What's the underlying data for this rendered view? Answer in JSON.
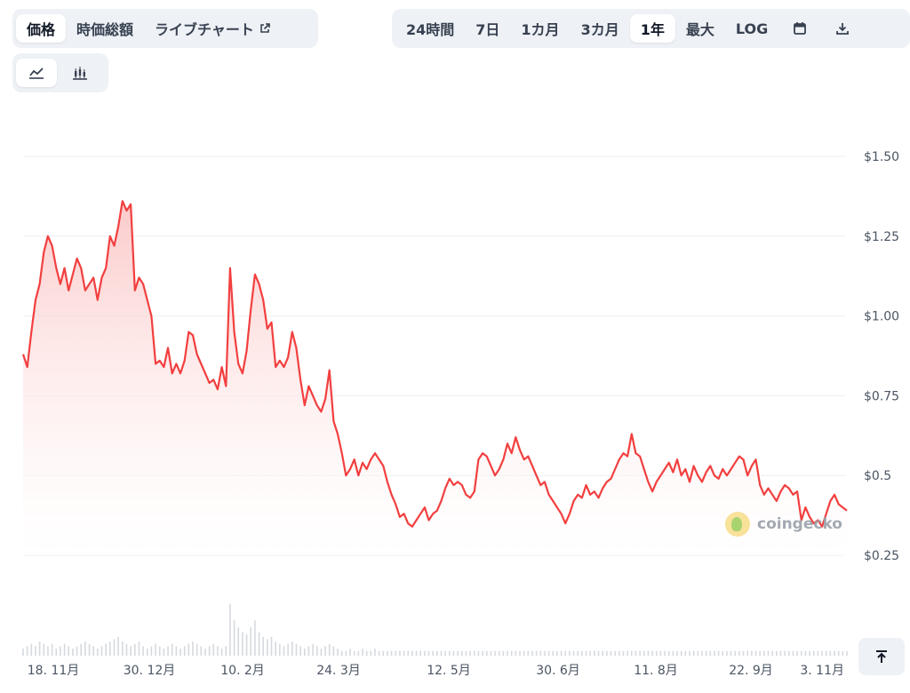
{
  "view_tabs": [
    {
      "label": "価格",
      "active": true,
      "name": "tab-price"
    },
    {
      "label": "時価総額",
      "active": false,
      "name": "tab-market-cap"
    },
    {
      "label": "ライブチャート",
      "active": false,
      "name": "tab-live-chart"
    }
  ],
  "range_tabs": [
    {
      "label": "24時間",
      "active": false,
      "name": "range-24h"
    },
    {
      "label": "7日",
      "active": false,
      "name": "range-7d"
    },
    {
      "label": "1カ月",
      "active": false,
      "name": "range-1m"
    },
    {
      "label": "3カ月",
      "active": false,
      "name": "range-3m"
    },
    {
      "label": "1年",
      "active": true,
      "name": "range-1y"
    },
    {
      "label": "最大",
      "active": false,
      "name": "range-max"
    },
    {
      "label": "LOG",
      "active": false,
      "name": "range-log"
    }
  ],
  "icons": {
    "external": "external-link-icon",
    "calendar": "calendar-icon",
    "download": "download-icon",
    "line_chart": "line-chart-icon",
    "candle_chart": "candlestick-chart-icon",
    "scroll_top": "arrow-up-to-line-icon"
  },
  "watermark": {
    "text": "coingecko"
  },
  "colors": {
    "line": "#f23f3f",
    "fill_top": "#fcd0d0",
    "grid": "#eceff3",
    "volume": "#d5d9df"
  },
  "chart_data": {
    "type": "line",
    "title": "",
    "xlabel": "",
    "ylabel": "",
    "ylim": [
      0.25,
      1.5
    ],
    "y_ticks": [
      0.25,
      0.5,
      0.75,
      1.0,
      1.25,
      1.5
    ],
    "y_tick_labels": [
      "$0.25",
      "$0.5",
      "$0.75",
      "$1.00",
      "$1.25",
      "$1.50"
    ],
    "x_tick_labels": [
      "18. 11月",
      "30. 12月",
      "10. 2月",
      "24. 3月",
      "12. 5月",
      "30. 6月",
      "11. 8月",
      "22. 9月",
      "3. 11月"
    ],
    "grid": true,
    "series": [
      {
        "values": [
          0.88,
          0.84,
          0.95,
          1.05,
          1.1,
          1.2,
          1.25,
          1.22,
          1.15,
          1.1,
          1.15,
          1.08,
          1.13,
          1.18,
          1.15,
          1.08,
          1.1,
          1.12,
          1.05,
          1.12,
          1.15,
          1.25,
          1.22,
          1.28,
          1.36,
          1.33,
          1.35,
          1.08,
          1.12,
          1.1,
          1.05,
          1.0,
          0.85,
          0.86,
          0.84,
          0.9,
          0.82,
          0.85,
          0.82,
          0.86,
          0.95,
          0.94,
          0.88,
          0.85,
          0.82,
          0.79,
          0.8,
          0.77,
          0.84,
          0.78,
          1.15,
          0.95,
          0.85,
          0.82,
          0.89,
          1.02,
          1.13,
          1.1,
          1.05,
          0.96,
          0.98,
          0.84,
          0.86,
          0.84,
          0.87,
          0.95,
          0.9,
          0.8,
          0.72,
          0.78,
          0.75,
          0.72,
          0.7,
          0.74,
          0.83,
          0.67,
          0.63,
          0.57,
          0.5,
          0.52,
          0.55,
          0.5,
          0.54,
          0.52,
          0.55,
          0.57,
          0.55,
          0.53,
          0.48,
          0.44,
          0.41,
          0.37,
          0.38,
          0.35,
          0.34,
          0.36,
          0.38,
          0.4,
          0.36,
          0.38,
          0.39,
          0.42,
          0.46,
          0.49,
          0.47,
          0.48,
          0.47,
          0.44,
          0.43,
          0.45,
          0.55,
          0.57,
          0.56,
          0.53,
          0.5,
          0.52,
          0.55,
          0.6,
          0.57,
          0.62,
          0.58,
          0.55,
          0.56,
          0.53,
          0.5,
          0.47,
          0.48,
          0.44,
          0.42,
          0.4,
          0.38,
          0.35,
          0.38,
          0.42,
          0.44,
          0.43,
          0.47,
          0.44,
          0.45,
          0.43,
          0.46,
          0.48,
          0.49,
          0.52,
          0.55,
          0.57,
          0.56,
          0.63,
          0.57,
          0.56,
          0.52,
          0.48,
          0.45,
          0.48,
          0.5,
          0.52,
          0.54,
          0.51,
          0.55,
          0.5,
          0.52,
          0.48,
          0.53,
          0.5,
          0.48,
          0.51,
          0.53,
          0.5,
          0.49,
          0.52,
          0.5,
          0.52,
          0.54,
          0.56,
          0.55,
          0.5,
          0.53,
          0.55,
          0.47,
          0.44,
          0.46,
          0.44,
          0.42,
          0.45,
          0.47,
          0.46,
          0.44,
          0.45,
          0.36,
          0.4,
          0.37,
          0.35,
          0.36,
          0.34,
          0.38,
          0.42,
          0.44,
          0.41,
          0.4,
          0.39
        ]
      },
      {
        "name": "",
        "values": [
          0.03,
          0.04,
          0.05,
          0.04,
          0.06,
          0.05,
          0.04,
          0.05,
          0.03,
          0.04,
          0.05,
          0.04,
          0.03,
          0.04,
          0.05,
          0.06,
          0.05,
          0.04,
          0.03,
          0.04,
          0.05,
          0.06,
          0.07,
          0.08,
          0.06,
          0.05,
          0.04,
          0.05,
          0.06,
          0.04,
          0.03,
          0.04,
          0.05,
          0.04,
          0.03,
          0.04,
          0.05,
          0.04,
          0.03,
          0.04,
          0.05,
          0.06,
          0.05,
          0.04,
          0.03,
          0.04,
          0.05,
          0.04,
          0.03,
          0.04,
          0.22,
          0.15,
          0.12,
          0.1,
          0.09,
          0.12,
          0.15,
          0.1,
          0.08,
          0.07,
          0.08,
          0.06,
          0.05,
          0.04,
          0.05,
          0.06,
          0.05,
          0.04,
          0.03,
          0.04,
          0.05,
          0.04,
          0.03,
          0.04,
          0.05,
          0.04,
          0.03,
          0.02,
          0.02,
          0.03,
          0.02,
          0.02,
          0.03,
          0.02,
          0.02,
          0.03,
          0.02,
          0.02,
          0.02,
          0.02,
          0.02,
          0.02,
          0.02,
          0.02,
          0.02,
          0.02,
          0.02,
          0.02,
          0.02,
          0.02,
          0.02,
          0.02,
          0.02,
          0.02,
          0.02,
          0.02,
          0.02,
          0.02,
          0.02,
          0.02,
          0.02,
          0.02,
          0.02,
          0.02,
          0.02,
          0.02,
          0.02,
          0.02,
          0.02,
          0.02,
          0.02,
          0.02,
          0.02,
          0.02,
          0.02,
          0.02,
          0.02,
          0.02,
          0.02,
          0.02,
          0.02,
          0.02,
          0.02,
          0.02,
          0.02,
          0.02,
          0.02,
          0.02,
          0.02,
          0.02,
          0.02,
          0.02,
          0.02,
          0.02,
          0.02,
          0.02,
          0.02,
          0.02,
          0.02,
          0.02,
          0.02,
          0.02,
          0.02,
          0.02,
          0.02,
          0.02,
          0.02,
          0.02,
          0.02,
          0.02,
          0.02,
          0.02,
          0.02,
          0.02,
          0.02,
          0.02,
          0.02,
          0.02,
          0.02,
          0.02,
          0.02,
          0.02,
          0.02,
          0.02,
          0.02,
          0.02,
          0.02,
          0.02,
          0.02,
          0.02,
          0.02,
          0.02,
          0.02,
          0.02,
          0.02,
          0.02,
          0.02,
          0.02,
          0.02,
          0.02,
          0.02,
          0.02,
          0.02,
          0.02,
          0.02,
          0.02,
          0.02,
          0.02,
          0.02,
          0.02
        ]
      }
    ]
  }
}
